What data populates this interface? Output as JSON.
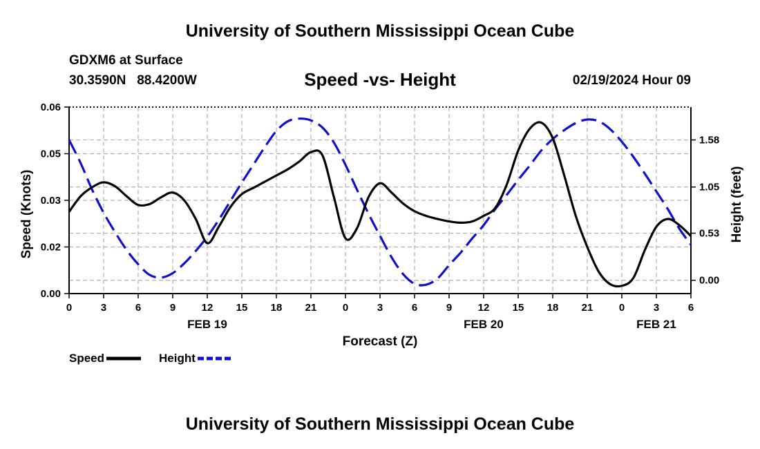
{
  "page": {
    "title": "University of Southern Mississippi Ocean Cube",
    "footer_title": "University of Southern Mississippi Ocean Cube",
    "station": "GDXM6 at Surface",
    "coords": "30.3590N   88.4200W",
    "chart_title": "Speed -vs- Height",
    "datetime": "02/19/2024 Hour 09"
  },
  "colors": {
    "speed": "#000000",
    "height": "#1010cc",
    "grid": "#b0b0b0"
  },
  "chart_data": {
    "type": "line",
    "title": "Speed -vs- Height",
    "xlabel": "Forecast (Z)",
    "ylabel": "Speed (Knots)",
    "y2label": "Height (feet)",
    "xlim": [
      0,
      54
    ],
    "ylim": [
      0,
      0.06
    ],
    "y2lim": [
      -0.15,
      1.95
    ],
    "x_ticks": [
      0,
      3,
      6,
      9,
      12,
      15,
      18,
      21,
      24,
      27,
      30,
      33,
      36,
      39,
      42,
      45,
      48,
      51,
      54
    ],
    "x_tick_labels": [
      "0",
      "3",
      "6",
      "9",
      "12",
      "15",
      "18",
      "21",
      "0",
      "3",
      "6",
      "9",
      "12",
      "15",
      "18",
      "21",
      "0",
      "3",
      "6"
    ],
    "date_labels": [
      {
        "x": 12,
        "label": "FEB 19"
      },
      {
        "x": 36,
        "label": "FEB 20"
      },
      {
        "x": 51,
        "label": "FEB 21"
      }
    ],
    "y_ticks": [
      0,
      0.015,
      0.03,
      0.045,
      0.06
    ],
    "y_tick_labels": [
      "0.00",
      "0.02",
      "0.03",
      "0.05",
      "0.06"
    ],
    "y2_ticks": [
      0,
      0.53,
      1.05,
      1.58
    ],
    "y2_tick_labels": [
      "0.00",
      "0.53",
      "1.05",
      "1.58"
    ],
    "legend_position": "bottom-left",
    "series": [
      {
        "name": "Speed",
        "axis": "left",
        "style": "solid",
        "x": [
          0,
          1,
          2,
          3,
          4,
          5,
          6,
          7,
          8,
          9,
          10,
          11,
          12,
          13,
          14,
          15,
          16,
          17,
          18,
          19,
          20,
          21,
          22,
          23,
          24,
          25,
          26,
          27,
          28,
          29,
          30,
          31,
          32,
          33,
          34,
          35,
          36,
          37,
          38,
          39,
          40,
          41,
          42,
          43,
          44,
          45,
          46,
          47,
          48,
          49,
          50,
          51,
          52,
          53,
          54
        ],
        "y": [
          0.0263,
          0.0313,
          0.0342,
          0.0358,
          0.0345,
          0.0313,
          0.0285,
          0.0288,
          0.031,
          0.0325,
          0.03,
          0.024,
          0.0162,
          0.0215,
          0.0278,
          0.032,
          0.034,
          0.036,
          0.038,
          0.04,
          0.0425,
          0.0455,
          0.0445,
          0.031,
          0.0178,
          0.021,
          0.031,
          0.0355,
          0.0325,
          0.029,
          0.0265,
          0.025,
          0.024,
          0.0232,
          0.0228,
          0.0232,
          0.025,
          0.0275,
          0.035,
          0.046,
          0.053,
          0.055,
          0.05,
          0.038,
          0.025,
          0.015,
          0.007,
          0.003,
          0.0025,
          0.005,
          0.014,
          0.0215,
          0.024,
          0.022,
          0.0185
        ]
      },
      {
        "name": "Height",
        "axis": "right",
        "style": "dashed",
        "x": [
          0,
          1,
          2,
          3,
          4,
          5,
          6,
          7,
          8,
          9,
          10,
          11,
          12,
          13,
          14,
          15,
          16,
          17,
          18,
          19,
          20,
          21,
          22,
          23,
          24,
          25,
          26,
          27,
          28,
          29,
          30,
          31,
          32,
          33,
          34,
          35,
          36,
          37,
          38,
          39,
          40,
          41,
          42,
          43,
          44,
          45,
          46,
          47,
          48,
          49,
          50,
          51,
          52,
          53,
          54
        ],
        "y": [
          1.58,
          1.32,
          1.02,
          0.76,
          0.54,
          0.34,
          0.18,
          0.06,
          0.03,
          0.08,
          0.19,
          0.33,
          0.49,
          0.68,
          0.89,
          1.1,
          1.3,
          1.5,
          1.68,
          1.79,
          1.82,
          1.8,
          1.72,
          1.55,
          1.3,
          1.02,
          0.75,
          0.5,
          0.26,
          0.07,
          -0.04,
          -0.05,
          0.02,
          0.17,
          0.31,
          0.47,
          0.62,
          0.8,
          0.96,
          1.13,
          1.29,
          1.46,
          1.59,
          1.69,
          1.77,
          1.81,
          1.79,
          1.7,
          1.56,
          1.39,
          1.2,
          1.0,
          0.8,
          0.58,
          0.4
        ]
      }
    ]
  }
}
